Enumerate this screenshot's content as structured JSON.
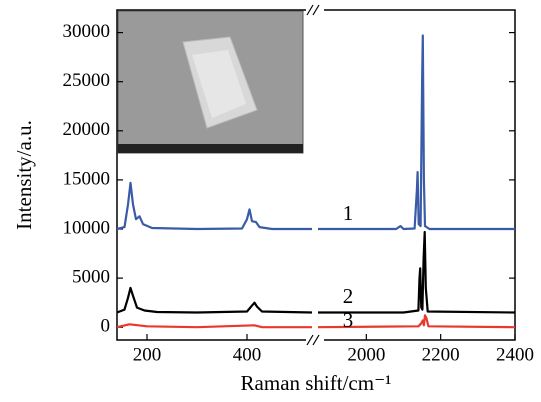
{
  "chart_data": {
    "type": "line",
    "xlabel": "Raman shift/cm⁻¹",
    "ylabel": "Intensity/a.u.",
    "x_segments": [
      {
        "xlim": [
          140,
          530
        ],
        "xticks": [
          200,
          400
        ]
      },
      {
        "xlim": [
          1870,
          2400
        ],
        "xticks": [
          2000,
          2200,
          2400
        ]
      }
    ],
    "ylim": [
      -1300,
      32300
    ],
    "yticks": [
      0,
      5000,
      10000,
      15000,
      20000,
      25000,
      30000
    ],
    "series": [
      {
        "name": "1",
        "color": "#3a5ba8",
        "x": [
          140,
          155,
          162,
          167,
          172,
          178,
          185,
          192,
          210,
          300,
          390,
          400,
          405,
          410,
          418,
          425,
          450,
          530,
          1870,
          2080,
          2092,
          2100,
          2130,
          2136,
          2138,
          2141,
          2146,
          2150,
          2152,
          2155,
          2158,
          2170,
          2400
        ],
        "values": [
          10000,
          10200,
          12500,
          14700,
          12500,
          11000,
          11300,
          10500,
          10100,
          10000,
          10050,
          11000,
          12000,
          10800,
          10700,
          10200,
          10000,
          10000,
          10000,
          10000,
          10300,
          10000,
          10050,
          14000,
          15800,
          10500,
          10300,
          25000,
          29700,
          15000,
          10300,
          10000,
          10000
        ]
      },
      {
        "name": "2",
        "color": "#000000",
        "x": [
          140,
          155,
          162,
          167,
          172,
          180,
          195,
          220,
          300,
          400,
          410,
          415,
          420,
          430,
          530,
          1870,
          2100,
          2140,
          2143,
          2145,
          2148,
          2151,
          2154,
          2157,
          2160,
          2165,
          2400
        ],
        "values": [
          1500,
          1800,
          3000,
          4000,
          3200,
          2000,
          1700,
          1550,
          1500,
          1600,
          2200,
          2500,
          2100,
          1600,
          1500,
          1500,
          1500,
          1700,
          5000,
          6000,
          2000,
          1800,
          7000,
          9700,
          4000,
          1600,
          1500
        ]
      },
      {
        "name": "3",
        "color": "#e8392c",
        "x": [
          140,
          165,
          200,
          300,
          415,
          430,
          530,
          1870,
          2140,
          2148,
          2152,
          2155,
          2158,
          2162,
          2167,
          2400
        ],
        "values": [
          0,
          300,
          100,
          0,
          200,
          0,
          0,
          0,
          100,
          400,
          700,
          200,
          1200,
          900,
          100,
          0
        ]
      }
    ]
  }
}
